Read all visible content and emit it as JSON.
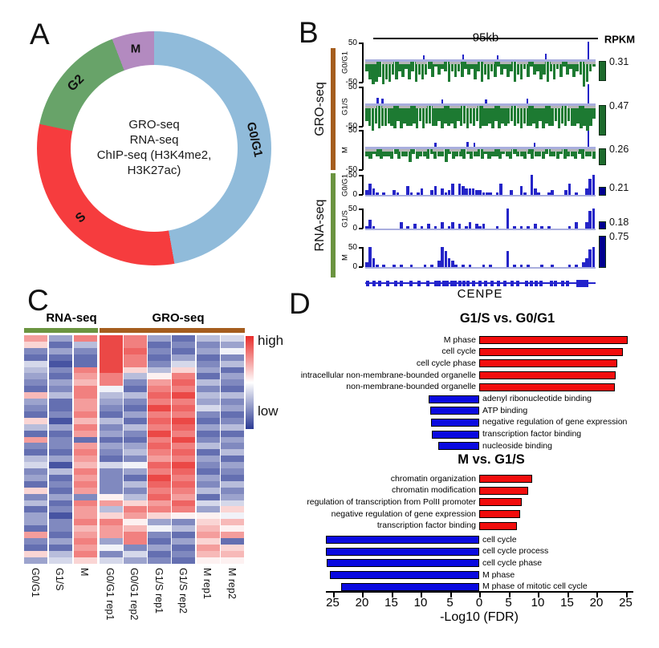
{
  "panel_labels": {
    "a": "A",
    "b": "B",
    "c": "C",
    "d": "D"
  },
  "colors": {
    "gro_group_bar": "#a55d1e",
    "rna_group_bar": "#6b9440",
    "gro_signal": "#1d7a32",
    "rna_signal": "#2424c8",
    "rpkm_gro_bar": "#1d6b2d",
    "rpkm_rna_bar": "#000090",
    "zero_line": "#a9aede",
    "gray_line": "#b5b5b5",
    "gene_model": "#2323cc",
    "heat_high": "#e82c2a",
    "heat_low": "#2b3a94",
    "go_red": "#f20d0d",
    "go_blue": "#0a0ae0"
  },
  "chart_data": [
    {
      "type": "pie",
      "panel": "A",
      "categories": [
        "M",
        "G0/G1",
        "S",
        "G2"
      ],
      "values": [
        6,
        47,
        31,
        16
      ],
      "start_angle_deg": 339,
      "angles_deg": [
        21,
        170,
        112,
        57
      ],
      "colors": [
        "#b38ac0",
        "#90bbda",
        "#f63c3e",
        "#68a369"
      ],
      "center_text": [
        "GRO-seq",
        "RNA-seq",
        "ChIP-seq (H3K4me2,",
        "H3K27ac)"
      ]
    },
    {
      "type": "area",
      "panel": "B",
      "region_label": "95kb",
      "rpkm_header": "RPKM",
      "gene_label": "CENPE",
      "groups": [
        {
          "name": "GRO-seq",
          "ymax": "50",
          "ymin": "-50",
          "tracks": [
            {
              "label": "G0/G1",
              "rpkm": 0.31,
              "neg_signal": "479869785746374857536253484646353748574625364857362547584736253645a842",
              "pos_spikes": [
                [
                  0.25,
                  5
                ],
                [
                  0.42,
                  6
                ],
                [
                  0.57,
                  5
                ],
                [
                  0.78,
                  7
                ],
                [
                  0.965,
                  22
                ]
              ]
            },
            {
              "label": "G1/S",
              "rpkm": 0.47,
              "neg_signal": "68a7988789697887969778869787968797869887969787687978879697886978688798a85",
              "pos_spikes": [
                [
                  0.05,
                  7
                ],
                [
                  0.07,
                  6
                ],
                [
                  0.33,
                  5
                ],
                [
                  0.52,
                  5
                ],
                [
                  0.7,
                  6
                ],
                [
                  0.965,
                  24
                ]
              ]
            },
            {
              "label": "M",
              "rpkm": 0.26,
              "neg_signal": "3423433424335243342433524334243342433423423342433423342433424334",
              "pos_spikes": [
                [
                  0.3,
                  5
                ],
                [
                  0.44,
                  6
                ],
                [
                  0.47,
                  5
                ],
                [
                  0.73,
                  5
                ],
                [
                  0.965,
                  20
                ]
              ]
            }
          ]
        },
        {
          "name": "RNA-seq",
          "ymax": "50",
          "ymin": "0",
          "tracks": [
            {
              "label": "G0/G1",
              "rpkm": 0.21,
              "pos_signal": "2531010021004101300240312505433322111015002004109310012000250100379"
            },
            {
              "label": "G1/S",
              "rpkm": 0.18,
              "pos_signal": "1410000000301020102010301302013021200010090101010201010000010300389"
            },
            {
              "label": "M",
              "rpkm": 0.75,
              "pos_signal": "2941010010100100010103974310101000101000070101010001001000010102489"
            }
          ]
        }
      ],
      "gene_exons": [
        0.005,
        0.03,
        0.055,
        0.09,
        0.125,
        0.15,
        0.19,
        0.225,
        0.265,
        0.3,
        0.315,
        0.335,
        0.35,
        0.37,
        0.385,
        0.405,
        0.42,
        0.44,
        0.465,
        0.49,
        0.515,
        0.545,
        0.57,
        0.6,
        0.63,
        0.655,
        0.695,
        0.715,
        0.735,
        0.755,
        0.8,
        0.82,
        0.85,
        0.87
      ],
      "gene_end_box": {
        "start": 0.915,
        "width": 0.055
      }
    },
    {
      "type": "heatmap",
      "panel": "C",
      "col_groups": [
        {
          "name": "RNA-seq",
          "cols": 3
        },
        {
          "name": "GRO-seq",
          "cols": 6
        }
      ],
      "columns": [
        {
          "label": "G0/G1",
          "bands": "b93265432a432952b32563429352442b3294"
        },
        {
          "label": "G1/S",
          "bands": "424213243522314233241523242313324256"
        },
        {
          "label": "M",
          "bands": "c5322cbaccbbcacb2bcbacbcb3cbbcabcbc9"
        },
        {
          "label": "G0/G1 rep1",
          "bands": "eeeeeecc754325342432633338b59cbb4736"
        },
        {
          "label": "G0/G1 rep2",
          "bands": "ccdcc9532532425324537425359cb8acc364"
        },
        {
          "label": "G1/S rep1",
          "bands": "4232358bcdcecdcecdcbdcedcdbc94732423"
        },
        {
          "label": "G1/S rep2",
          "bands": "232469cdcecdcedcecdcedcdcbdc83524232"
        },
        {
          "label": "M rep1",
          "bands": "5342342535463242352432435264 89ab9ba8"
        },
        {
          "label": "M rep2",
          "bands": "64735243253423524352432534697a8b29a8"
        }
      ],
      "legend": {
        "high": "high",
        "low": "low"
      }
    },
    {
      "type": "bar",
      "panel": "D",
      "title": "G1/S vs. G0/G1",
      "xlabel": "-Log10 (FDR)",
      "xlim": [
        -27,
        27
      ],
      "categories": [
        "M phase",
        "cell cycle",
        "cell cycle phase",
        "intracellular non-membrane-bounded organelle",
        "non-membrane-bounded organelle",
        "adenyl ribonucleotide binding",
        "ATP binding",
        "negative regulation of gene expression",
        "transcription factor binding",
        "nucleoside binding"
      ],
      "values": [
        25.4,
        24.5,
        23.6,
        23.3,
        23.2,
        -8.6,
        -8.4,
        -8.2,
        -8.1,
        -7.0
      ]
    },
    {
      "type": "bar",
      "panel": "D",
      "title": "M vs. G1/S",
      "xlabel": "-Log10 (FDR)",
      "xlim": [
        -27,
        27
      ],
      "categories": [
        "chromatin organization",
        "chromatin modification",
        "regulation of transcription from PolII promoter",
        "negative regulation of gene expression",
        "transcription factor binding",
        "cell cycle",
        "cell cycle process",
        "cell cycle phase",
        "M phase",
        "M phase of mitotic cell cycle"
      ],
      "values": [
        9.0,
        8.3,
        7.2,
        7.0,
        6.5,
        -26.2,
        -26.2,
        -26.0,
        -25.5,
        -23.5
      ]
    }
  ],
  "d_axis": {
    "ticks": [
      -25,
      -20,
      -15,
      -10,
      -5,
      0,
      5,
      10,
      15,
      20,
      25
    ]
  }
}
